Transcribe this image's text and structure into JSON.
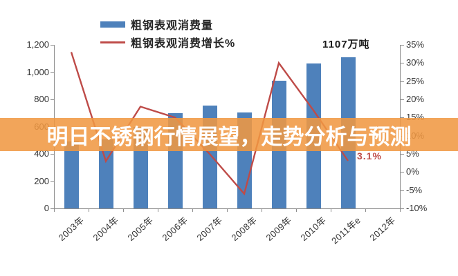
{
  "banner": {
    "text": "明日不锈钢行情展望，走势分析与预测",
    "bg": "rgba(240,152,66,0.87)",
    "text_color": "#FFFFFF"
  },
  "legend": {
    "items": [
      {
        "label": "粗钢表观消费量",
        "swatch": "bar-swatch",
        "color": "#4E81BB"
      },
      {
        "label": "粗钢表观消费增长%",
        "swatch": "line-swatch",
        "color": "#BE4B48"
      }
    ]
  },
  "annotations": {
    "peak_label": "1107万吨",
    "growth_label": "3.1%",
    "growth_label_color": "#BE4B48"
  },
  "chart_data": {
    "type": "bar",
    "combo_note": "bar series on left axis + line series on right axis",
    "categories": [
      "2003年",
      "2004年",
      "2005年",
      "2006年",
      "2007年",
      "2008年",
      "2009年",
      "2010年",
      "2011年e",
      "2012年"
    ],
    "series": [
      {
        "name": "粗钢表观消费量",
        "type": "bar",
        "axis": "left",
        "color": "#4E81BB",
        "values": [
          490,
          505,
          600,
          700,
          755,
          705,
          935,
          1065,
          1107,
          null
        ]
      },
      {
        "name": "粗钢表观消费增长%",
        "type": "line",
        "axis": "right",
        "color": "#BE4B48",
        "values": [
          33,
          3,
          18,
          15,
          5,
          -6,
          30,
          17,
          3.1,
          null
        ]
      }
    ],
    "left_axis": {
      "min": 0,
      "max": 1200,
      "step": 200,
      "tick_labels": [
        "0",
        "200",
        "400",
        "600",
        "800",
        "1,000",
        "1,200"
      ]
    },
    "right_axis": {
      "min": -10,
      "max": 35,
      "step": 5,
      "tick_labels": [
        "-10%",
        "-5%",
        "0%",
        "5%",
        "10%",
        "15%",
        "20%",
        "25%",
        "30%",
        "35%"
      ]
    },
    "grid": false,
    "legend_position": "top"
  }
}
